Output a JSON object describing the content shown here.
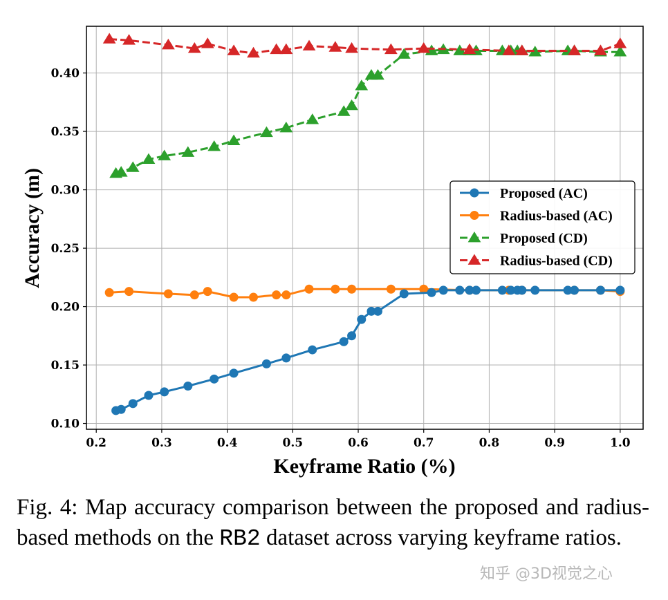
{
  "chart_data": {
    "type": "line",
    "xlabel": "Keyframe Ratio (%)",
    "ylabel": "Accuracy (m)",
    "xlim": [
      0.185,
      1.035
    ],
    "ylim": [
      0.095,
      0.44
    ],
    "xticks": [
      0.2,
      0.3,
      0.4,
      0.5,
      0.6,
      0.7,
      0.8,
      0.9,
      1.0
    ],
    "xtick_labels": [
      "0.2",
      "0.3",
      "0.4",
      "0.5",
      "0.6",
      "0.7",
      "0.8",
      "0.9",
      "1.0"
    ],
    "yticks": [
      0.1,
      0.15,
      0.2,
      0.25,
      0.3,
      0.35,
      0.4
    ],
    "ytick_labels": [
      "0.10",
      "0.15",
      "0.20",
      "0.25",
      "0.30",
      "0.35",
      "0.40"
    ],
    "grid": true,
    "legend_position": "center-right",
    "series": [
      {
        "name": "Proposed (AC)",
        "color": "#1f77b4",
        "marker": "circle",
        "linestyle": "solid",
        "x": [
          0.23,
          0.238,
          0.256,
          0.28,
          0.304,
          0.34,
          0.38,
          0.41,
          0.46,
          0.49,
          0.53,
          0.578,
          0.59,
          0.605,
          0.62,
          0.63,
          0.67,
          0.712,
          0.73,
          0.755,
          0.77,
          0.78,
          0.82,
          0.833,
          0.843,
          0.85,
          0.87,
          0.92,
          0.93,
          0.97,
          1.0
        ],
        "y": [
          0.111,
          0.112,
          0.117,
          0.124,
          0.127,
          0.132,
          0.138,
          0.143,
          0.151,
          0.156,
          0.163,
          0.17,
          0.175,
          0.189,
          0.196,
          0.196,
          0.211,
          0.212,
          0.214,
          0.214,
          0.214,
          0.214,
          0.214,
          0.214,
          0.214,
          0.214,
          0.214,
          0.214,
          0.214,
          0.214,
          0.214
        ]
      },
      {
        "name": "Radius-based (AC)",
        "color": "#ff7f0e",
        "marker": "circle",
        "linestyle": "solid",
        "x": [
          0.22,
          0.25,
          0.31,
          0.35,
          0.37,
          0.41,
          0.44,
          0.475,
          0.49,
          0.525,
          0.565,
          0.59,
          0.65,
          0.7,
          0.77,
          0.83,
          0.85,
          0.93,
          0.97,
          1.0
        ],
        "y": [
          0.212,
          0.213,
          0.211,
          0.21,
          0.213,
          0.208,
          0.208,
          0.21,
          0.21,
          0.215,
          0.215,
          0.215,
          0.215,
          0.215,
          0.214,
          0.214,
          0.214,
          0.214,
          0.214,
          0.213
        ]
      },
      {
        "name": "Proposed (CD)",
        "color": "#2ca02c",
        "marker": "triangle",
        "linestyle": "dashed",
        "x": [
          0.23,
          0.238,
          0.256,
          0.28,
          0.304,
          0.34,
          0.38,
          0.41,
          0.46,
          0.49,
          0.53,
          0.578,
          0.59,
          0.605,
          0.62,
          0.63,
          0.67,
          0.712,
          0.73,
          0.755,
          0.77,
          0.78,
          0.82,
          0.833,
          0.843,
          0.85,
          0.87,
          0.92,
          0.93,
          0.97,
          1.0
        ],
        "y": [
          0.314,
          0.315,
          0.319,
          0.326,
          0.329,
          0.332,
          0.337,
          0.342,
          0.349,
          0.353,
          0.36,
          0.367,
          0.372,
          0.389,
          0.398,
          0.398,
          0.416,
          0.419,
          0.42,
          0.419,
          0.419,
          0.419,
          0.419,
          0.419,
          0.419,
          0.419,
          0.418,
          0.419,
          0.419,
          0.418,
          0.418
        ]
      },
      {
        "name": "Radius-based (CD)",
        "color": "#d62728",
        "marker": "triangle",
        "linestyle": "dashed",
        "x": [
          0.22,
          0.25,
          0.31,
          0.35,
          0.37,
          0.41,
          0.44,
          0.475,
          0.49,
          0.525,
          0.565,
          0.59,
          0.65,
          0.7,
          0.77,
          0.83,
          0.85,
          0.93,
          0.97,
          1.0
        ],
        "y": [
          0.429,
          0.428,
          0.424,
          0.421,
          0.425,
          0.419,
          0.417,
          0.42,
          0.42,
          0.423,
          0.422,
          0.421,
          0.42,
          0.421,
          0.42,
          0.419,
          0.419,
          0.419,
          0.419,
          0.425
        ]
      }
    ]
  },
  "caption": {
    "prefix": "Fig. 4: Map accuracy comparison between the proposed and radius-based methods on the ",
    "dataset": "RB2",
    "suffix": " dataset across varying keyframe ratios."
  },
  "watermark": "知乎 @3D视觉之心"
}
